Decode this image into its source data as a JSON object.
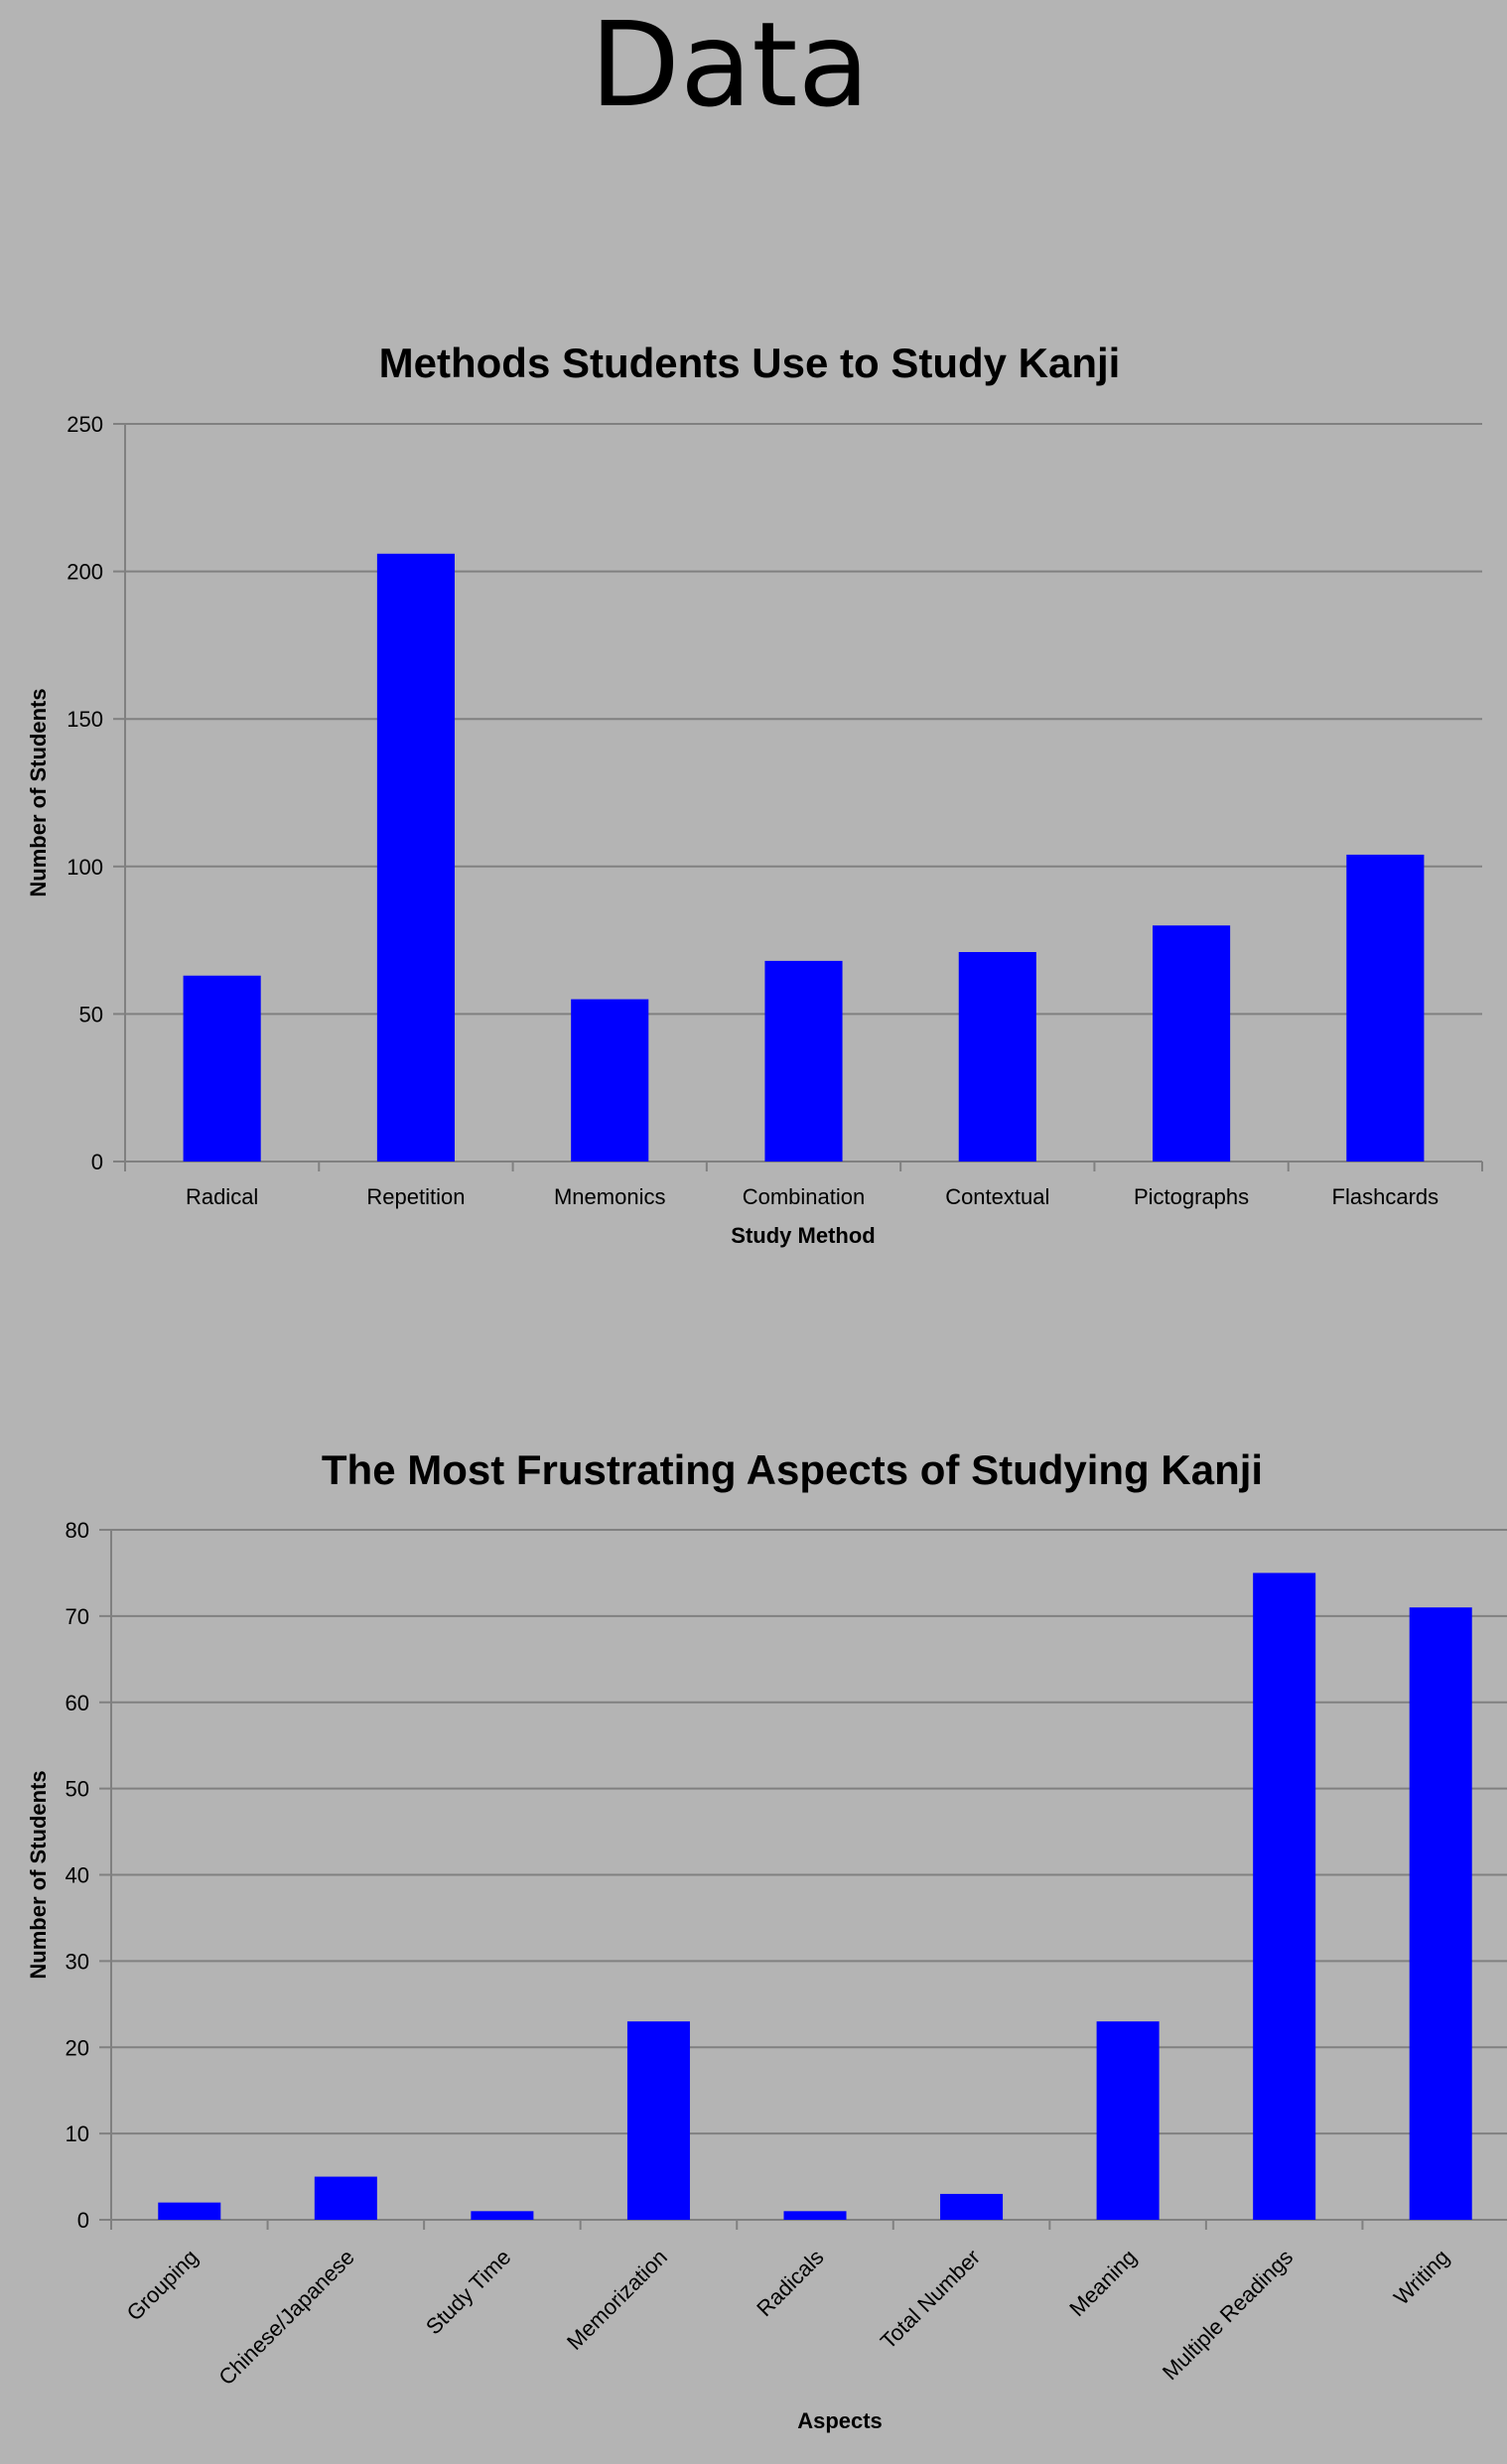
{
  "page": {
    "title": "Data"
  },
  "chart_data": [
    {
      "type": "bar",
      "title": "Methods Students Use to Study Kanji",
      "xlabel": "Study Method",
      "ylabel": "Number of Students",
      "categories": [
        "Radical",
        "Repetition",
        "Mnemonics",
        "Combination",
        "Contextual",
        "Pictographs",
        "Flashcards"
      ],
      "values": [
        63,
        206,
        55,
        68,
        71,
        80,
        104
      ],
      "ylim": [
        0,
        250
      ],
      "yticks": [
        "0",
        "50",
        "100",
        "150",
        "200",
        "250"
      ],
      "grid": true,
      "bar_color": "#0000ff"
    },
    {
      "type": "bar",
      "title": "The Most Frustrating Aspects of Studying Kanji",
      "xlabel": "Aspects",
      "ylabel": "Number of Students",
      "categories": [
        "Grouping",
        "Chinese/Japanese",
        "Study Time",
        "Memorization",
        "Radicals",
        "Total Number",
        "Meaning",
        "Multiple Readings",
        "Writing"
      ],
      "values": [
        2,
        5,
        1,
        23,
        1,
        3,
        23,
        75,
        71
      ],
      "ylim": [
        0,
        80
      ],
      "yticks": [
        "0",
        "10",
        "20",
        "30",
        "40",
        "50",
        "60",
        "70",
        "80"
      ],
      "grid": true,
      "bar_color": "#0000ff"
    }
  ]
}
